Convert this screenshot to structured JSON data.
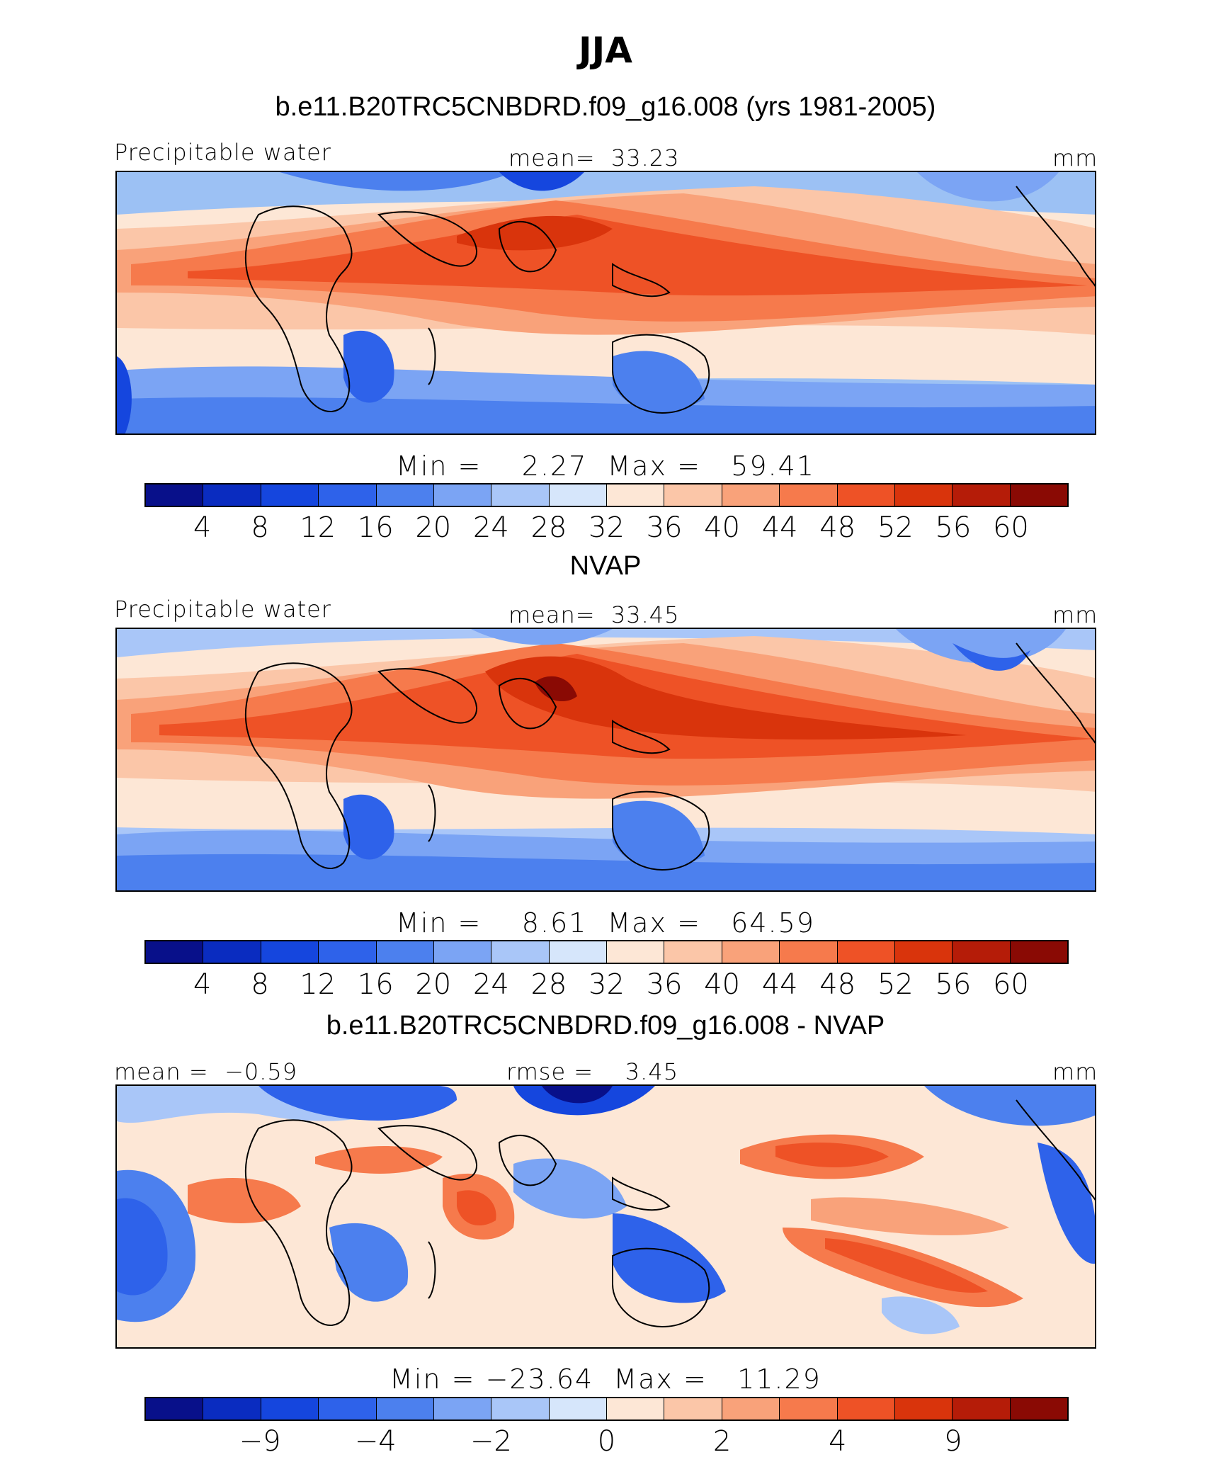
{
  "title": "JJA",
  "colorbar": {
    "colors": [
      "#08108a",
      "#0a2cc0",
      "#1546de",
      "#2e62ea",
      "#4c80ee",
      "#7ba4f4",
      "#a9c6f8",
      "#d6e6fb",
      "#fde7d6",
      "#fbc6a8",
      "#f9a27a",
      "#f67a4c",
      "#ee5226",
      "#d9340c",
      "#b51c08",
      "#8a0a04"
    ]
  },
  "panels": [
    {
      "title": "b.e11.B20TRC5CNBDRD.f09_g16.008 (yrs 1981-2005)",
      "left_label": "Precipitable water",
      "center_label": "mean=  33.23",
      "right_label": "mm",
      "minmax": "Min =    2.27  Max =   59.41",
      "tick_labels": [
        "4",
        "8",
        "12",
        "16",
        "20",
        "24",
        "28",
        "32",
        "36",
        "40",
        "44",
        "48",
        "52",
        "56",
        "60"
      ],
      "map_kind": "model"
    },
    {
      "title": "NVAP",
      "left_label": "Precipitable water",
      "center_label": "mean=  33.45",
      "right_label": "mm",
      "minmax": "Min =    8.61  Max =   64.59",
      "tick_labels": [
        "4",
        "8",
        "12",
        "16",
        "20",
        "24",
        "28",
        "32",
        "36",
        "40",
        "44",
        "48",
        "52",
        "56",
        "60"
      ],
      "map_kind": "obs"
    },
    {
      "title": "b.e11.B20TRC5CNBDRD.f09_g16.008 - NVAP",
      "left_label": "mean =  −0.59",
      "center_label": "rmse =    3.45",
      "right_label": "mm",
      "minmax": "Min = −23.64  Max =   11.29",
      "tick_labels": [
        "−9",
        "−4",
        "−2",
        "0",
        "2",
        "4",
        "9"
      ],
      "tick_positions": [
        2,
        4,
        6,
        8,
        10,
        12,
        14
      ],
      "map_kind": "diff"
    }
  ]
}
